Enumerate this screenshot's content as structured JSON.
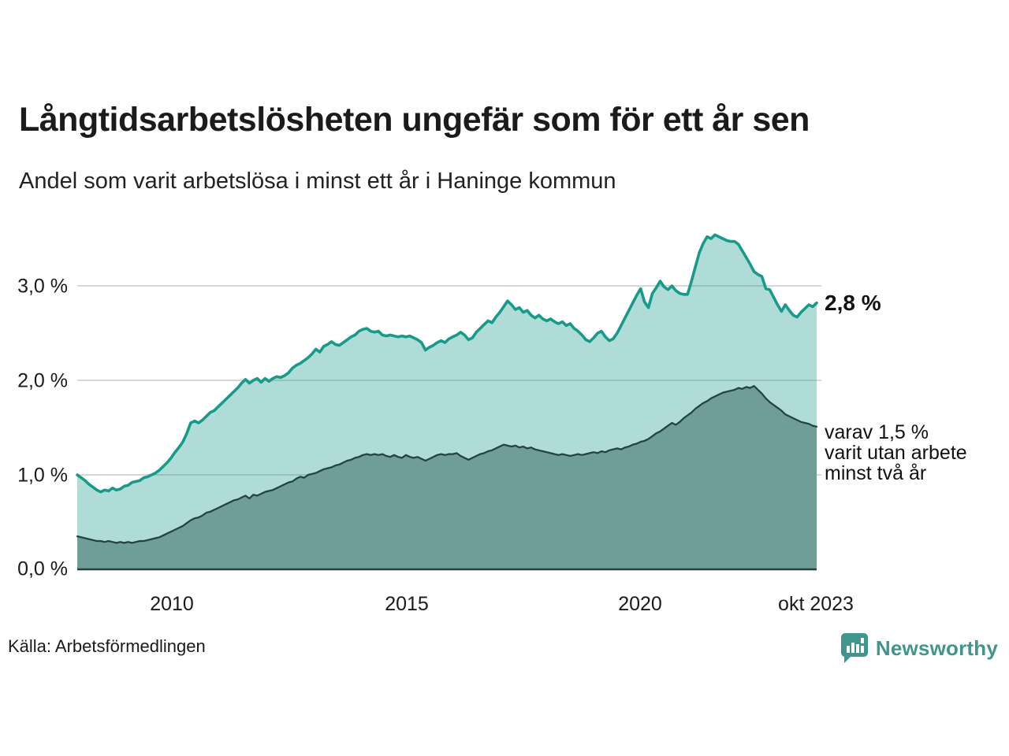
{
  "header": {
    "title": "Långtidsarbetslösheten ungefär som för ett år sen",
    "subtitle": "Andel som varit arbetslösa i minst ett år i Haninge kommun"
  },
  "chart_data": {
    "type": "area",
    "title": "Långtidsarbetslösheten ungefär som för ett år sen",
    "subtitle": "Andel som varit arbetslösa i minst ett år i Haninge kommun",
    "frequency": "monthly",
    "x_start": "2008-01",
    "x_end": "2023-10",
    "ylim": [
      0,
      3.75
    ],
    "grid": "horizontal",
    "y_gridline_values": [
      1,
      2,
      3
    ],
    "y_ticks": [
      {
        "value": 0,
        "label": "0,0 %"
      },
      {
        "value": 1,
        "label": "1,0 %"
      },
      {
        "value": 2,
        "label": "2,0 %"
      },
      {
        "value": 3,
        "label": "3,0 %"
      }
    ],
    "x_ticks": [
      {
        "label": "2010",
        "month_index": 24
      },
      {
        "label": "2015",
        "month_index": 84
      },
      {
        "label": "2020",
        "month_index": 144
      },
      {
        "label": "okt 2023",
        "month_index": 189
      }
    ],
    "colors": {
      "line_primary": "#189a8b",
      "fill_primary": "rgba(26,156,140,0.35)",
      "line_secondary": "#22433f",
      "fill_secondary": "#6f9d98",
      "gridline": "#d8d8d8",
      "baseline": "#26413d"
    },
    "series": [
      {
        "name": "Andel som varit arbetslösa i minst ett år",
        "end_value_label": "2,8 %",
        "values": [
          1.0,
          0.97,
          0.94,
          0.9,
          0.87,
          0.84,
          0.82,
          0.84,
          0.83,
          0.86,
          0.84,
          0.85,
          0.88,
          0.89,
          0.92,
          0.93,
          0.94,
          0.97,
          0.98,
          1.0,
          1.02,
          1.05,
          1.09,
          1.13,
          1.18,
          1.24,
          1.29,
          1.35,
          1.44,
          1.55,
          1.57,
          1.55,
          1.58,
          1.62,
          1.66,
          1.68,
          1.72,
          1.76,
          1.8,
          1.84,
          1.88,
          1.92,
          1.97,
          2.01,
          1.97,
          2.0,
          2.02,
          1.98,
          2.02,
          1.99,
          2.02,
          2.04,
          2.03,
          2.05,
          2.08,
          2.13,
          2.16,
          2.18,
          2.21,
          2.24,
          2.28,
          2.33,
          2.3,
          2.36,
          2.38,
          2.41,
          2.38,
          2.37,
          2.4,
          2.43,
          2.46,
          2.48,
          2.52,
          2.54,
          2.55,
          2.52,
          2.51,
          2.52,
          2.48,
          2.47,
          2.48,
          2.47,
          2.46,
          2.47,
          2.46,
          2.47,
          2.45,
          2.43,
          2.4,
          2.32,
          2.35,
          2.37,
          2.4,
          2.42,
          2.4,
          2.44,
          2.46,
          2.48,
          2.51,
          2.48,
          2.43,
          2.45,
          2.51,
          2.55,
          2.59,
          2.63,
          2.61,
          2.67,
          2.72,
          2.78,
          2.84,
          2.8,
          2.75,
          2.77,
          2.72,
          2.74,
          2.69,
          2.66,
          2.69,
          2.65,
          2.63,
          2.65,
          2.62,
          2.6,
          2.62,
          2.58,
          2.6,
          2.55,
          2.52,
          2.48,
          2.43,
          2.41,
          2.45,
          2.5,
          2.52,
          2.46,
          2.42,
          2.44,
          2.5,
          2.58,
          2.66,
          2.74,
          2.82,
          2.9,
          2.97,
          2.83,
          2.77,
          2.92,
          2.98,
          3.05,
          2.99,
          2.96,
          3.0,
          2.95,
          2.92,
          2.91,
          2.91,
          3.05,
          3.2,
          3.35,
          3.45,
          3.52,
          3.5,
          3.54,
          3.52,
          3.5,
          3.48,
          3.47,
          3.47,
          3.44,
          3.37,
          3.3,
          3.23,
          3.15,
          3.12,
          3.1,
          2.97,
          2.96,
          2.88,
          2.8,
          2.73,
          2.8,
          2.74,
          2.69,
          2.67,
          2.72,
          2.76,
          2.8,
          2.78,
          2.82
        ]
      },
      {
        "name": "varav varit utan arbete minst två år",
        "end_value_label": "varav 1,5 %",
        "values": [
          0.35,
          0.34,
          0.33,
          0.32,
          0.31,
          0.3,
          0.3,
          0.29,
          0.3,
          0.29,
          0.28,
          0.29,
          0.28,
          0.29,
          0.28,
          0.29,
          0.3,
          0.3,
          0.31,
          0.32,
          0.33,
          0.34,
          0.36,
          0.38,
          0.4,
          0.42,
          0.44,
          0.46,
          0.49,
          0.52,
          0.54,
          0.55,
          0.57,
          0.6,
          0.61,
          0.63,
          0.65,
          0.67,
          0.69,
          0.71,
          0.73,
          0.74,
          0.76,
          0.78,
          0.75,
          0.79,
          0.78,
          0.8,
          0.82,
          0.83,
          0.84,
          0.86,
          0.88,
          0.9,
          0.92,
          0.93,
          0.96,
          0.98,
          0.97,
          1.0,
          1.01,
          1.02,
          1.04,
          1.06,
          1.07,
          1.08,
          1.1,
          1.11,
          1.13,
          1.15,
          1.16,
          1.18,
          1.19,
          1.21,
          1.22,
          1.21,
          1.22,
          1.21,
          1.22,
          1.2,
          1.19,
          1.21,
          1.19,
          1.18,
          1.21,
          1.19,
          1.18,
          1.19,
          1.17,
          1.15,
          1.17,
          1.19,
          1.21,
          1.22,
          1.21,
          1.22,
          1.22,
          1.23,
          1.2,
          1.18,
          1.16,
          1.18,
          1.2,
          1.22,
          1.23,
          1.25,
          1.26,
          1.28,
          1.3,
          1.32,
          1.31,
          1.3,
          1.31,
          1.29,
          1.3,
          1.28,
          1.29,
          1.27,
          1.26,
          1.25,
          1.24,
          1.23,
          1.22,
          1.21,
          1.22,
          1.21,
          1.2,
          1.21,
          1.22,
          1.21,
          1.22,
          1.23,
          1.24,
          1.23,
          1.25,
          1.24,
          1.26,
          1.27,
          1.28,
          1.27,
          1.29,
          1.3,
          1.32,
          1.33,
          1.35,
          1.36,
          1.38,
          1.41,
          1.44,
          1.46,
          1.49,
          1.52,
          1.55,
          1.53,
          1.56,
          1.6,
          1.63,
          1.66,
          1.7,
          1.73,
          1.76,
          1.78,
          1.81,
          1.83,
          1.85,
          1.87,
          1.88,
          1.89,
          1.9,
          1.92,
          1.91,
          1.93,
          1.92,
          1.94,
          1.9,
          1.86,
          1.81,
          1.77,
          1.74,
          1.71,
          1.68,
          1.64,
          1.62,
          1.6,
          1.58,
          1.56,
          1.55,
          1.54,
          1.52,
          1.51
        ]
      }
    ],
    "annotations": [
      {
        "text": "2,8 %",
        "style": "bold",
        "refers_to": "series-0-end"
      },
      {
        "text": "varav 1,5 %\nvarit utan arbete\nminst två år",
        "style": "regular",
        "refers_to": "series-1-end"
      }
    ]
  },
  "annotation_secondary": {
    "line1": "varav 1,5 %",
    "line2": "varit utan arbete",
    "line3": "minst två år"
  },
  "footer": {
    "source": "Källa: Arbetsförmedlingen",
    "logo_text": "Newsworthy"
  }
}
